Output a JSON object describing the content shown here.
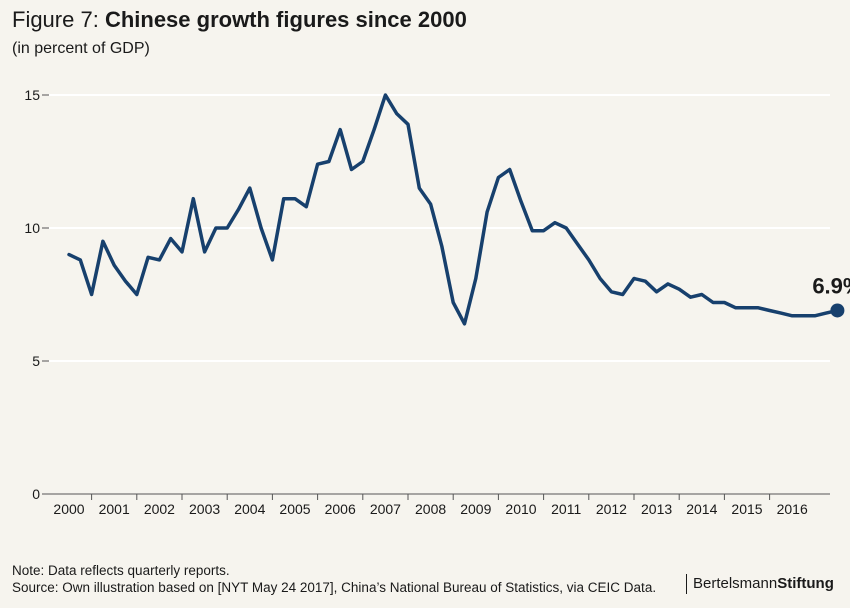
{
  "header": {
    "title_prefix": "Figure 7: ",
    "title": "Chinese growth figures since 2000",
    "subtitle": "(in percent of GDP)"
  },
  "footer": {
    "note": "Note: Data reflects quarterly reports.",
    "source": "Source: Own illustration based on [NYT May 24 2017], China’s National Bureau of Statistics, via CEIC Data."
  },
  "logo": {
    "part1": "Bertelsmann",
    "part2": "Stiftung"
  },
  "colors": {
    "line": "#17406d",
    "grid": "#ffffff",
    "axis": "#555555",
    "background": "#f6f4ee"
  },
  "chart_data": {
    "type": "line",
    "title": "Chinese growth figures since 2000",
    "subtitle": "(in percent of GDP)",
    "xlabel": "",
    "ylabel": "",
    "ylim": [
      0,
      15
    ],
    "yticks": [
      0,
      5,
      10,
      15
    ],
    "xtick_labels": [
      "2000",
      "2001",
      "2002",
      "2003",
      "2004",
      "2005",
      "2006",
      "2007",
      "2008",
      "2009",
      "2010",
      "2011",
      "2012",
      "2013",
      "2014",
      "2015",
      "2016"
    ],
    "grid": true,
    "series": [
      {
        "name": "",
        "color": "#17406d",
        "x": [
          "2000Q1",
          "2000Q2",
          "2000Q3",
          "2000Q4",
          "2001Q1",
          "2001Q2",
          "2001Q3",
          "2001Q4",
          "2002Q1",
          "2002Q2",
          "2002Q3",
          "2002Q4",
          "2003Q1",
          "2003Q2",
          "2003Q3",
          "2003Q4",
          "2004Q1",
          "2004Q2",
          "2004Q3",
          "2004Q4",
          "2005Q1",
          "2005Q2",
          "2005Q3",
          "2005Q4",
          "2006Q1",
          "2006Q2",
          "2006Q3",
          "2006Q4",
          "2007Q1",
          "2007Q2",
          "2007Q3",
          "2007Q4",
          "2008Q1",
          "2008Q2",
          "2008Q3",
          "2008Q4",
          "2009Q1",
          "2009Q2",
          "2009Q3",
          "2009Q4",
          "2010Q1",
          "2010Q2",
          "2010Q3",
          "2010Q4",
          "2011Q1",
          "2011Q2",
          "2011Q3",
          "2011Q4",
          "2012Q1",
          "2012Q2",
          "2012Q3",
          "2012Q4",
          "2013Q1",
          "2013Q2",
          "2013Q3",
          "2013Q4",
          "2014Q1",
          "2014Q2",
          "2014Q3",
          "2014Q4",
          "2015Q1",
          "2015Q2",
          "2015Q3",
          "2015Q4",
          "2016Q1",
          "2016Q2",
          "2016Q3",
          "2016Q4",
          "2017Q1"
        ],
        "values": [
          9.0,
          8.8,
          7.5,
          9.5,
          8.6,
          8.0,
          7.5,
          8.9,
          8.8,
          9.6,
          9.1,
          11.1,
          9.1,
          10.0,
          10.0,
          10.7,
          11.5,
          10.0,
          8.8,
          11.1,
          11.1,
          10.8,
          12.4,
          12.5,
          13.7,
          12.2,
          12.5,
          13.7,
          15.0,
          14.3,
          13.9,
          11.5,
          10.9,
          9.3,
          7.2,
          6.4,
          8.1,
          10.6,
          11.9,
          12.2,
          11.0,
          9.9,
          9.9,
          10.2,
          10.0,
          9.4,
          8.8,
          8.1,
          7.6,
          7.5,
          8.1,
          8.0,
          7.6,
          7.9,
          7.7,
          7.4,
          7.5,
          7.2,
          7.2,
          7.0,
          7.0,
          7.0,
          6.9,
          6.8,
          6.7,
          6.7,
          6.7,
          6.8,
          6.9
        ]
      }
    ],
    "annotations": [
      {
        "text": "6.9%",
        "x": "2017Q1",
        "y": 6.9
      }
    ]
  }
}
